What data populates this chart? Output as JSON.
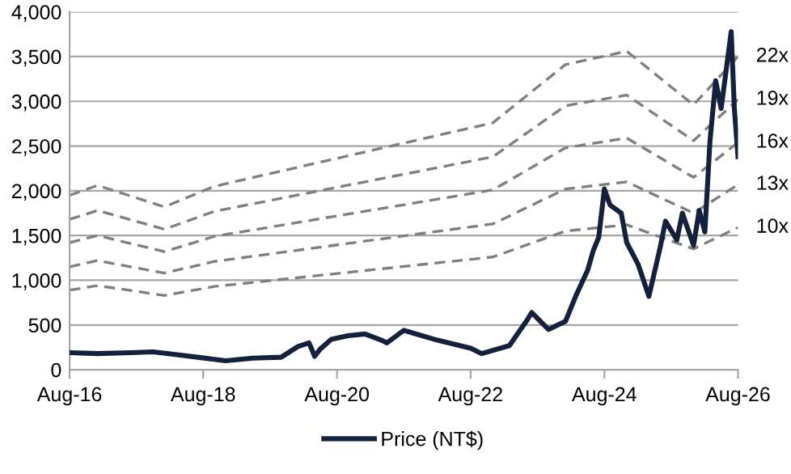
{
  "chart_data": {
    "type": "line",
    "legend": "bottom",
    "grid": "y",
    "xlim": [
      "2016-08",
      "2026-08"
    ],
    "xticks": [
      {
        "value": "2016-08",
        "label": "Aug-16"
      },
      {
        "value": "2018-08",
        "label": "Aug-18"
      },
      {
        "value": "2020-08",
        "label": "Aug-20"
      },
      {
        "value": "2022-08",
        "label": "Aug-22"
      },
      {
        "value": "2024-08",
        "label": "Aug-24"
      },
      {
        "value": "2026-08",
        "label": "Aug-26"
      }
    ],
    "ylim": [
      0,
      4000
    ],
    "yticks": [
      0,
      500,
      {
        "value": 1000,
        "label": "1,000"
      },
      {
        "value": 1500,
        "label": "1,500"
      },
      {
        "value": 2000,
        "label": "2,000"
      },
      {
        "value": 2500,
        "label": "2,500"
      },
      {
        "value": 3000,
        "label": "3,000"
      },
      {
        "value": 3500,
        "label": "3,500"
      },
      {
        "value": 4000,
        "label": "4,000"
      }
    ],
    "series": [
      {
        "name": "22x",
        "color": "#7f7f7f",
        "line_style": "dashed",
        "x": [
          "2016-08",
          "2017-01",
          "2018-01",
          "2018-10",
          "2022-12",
          "2024-01",
          "2024-12",
          "2025-12",
          "2026-08"
        ],
        "values": [
          1950,
          2060,
          1820,
          2050,
          2760,
          3410,
          3560,
          2960,
          3500
        ]
      },
      {
        "name": "19x",
        "color": "#7f7f7f",
        "line_style": "dashed",
        "x": [
          "2016-08",
          "2017-01",
          "2018-01",
          "2018-10",
          "2022-12",
          "2024-01",
          "2024-12",
          "2025-12",
          "2026-08"
        ],
        "values": [
          1680,
          1780,
          1570,
          1770,
          2380,
          2950,
          3070,
          2560,
          3020
        ]
      },
      {
        "name": "16x",
        "color": "#7f7f7f",
        "line_style": "dashed",
        "x": [
          "2016-08",
          "2017-01",
          "2018-01",
          "2018-10",
          "2022-12",
          "2024-01",
          "2024-12",
          "2025-12",
          "2026-08"
        ],
        "values": [
          1420,
          1500,
          1320,
          1490,
          2010,
          2480,
          2590,
          2150,
          2540
        ]
      },
      {
        "name": "13x",
        "color": "#7f7f7f",
        "line_style": "dashed",
        "x": [
          "2016-08",
          "2017-01",
          "2018-01",
          "2018-10",
          "2022-12",
          "2024-01",
          "2024-12",
          "2025-12",
          "2026-08"
        ],
        "values": [
          1150,
          1220,
          1080,
          1210,
          1630,
          2020,
          2100,
          1750,
          2070
        ]
      },
      {
        "name": "10x",
        "color": "#7f7f7f",
        "line_style": "dashed",
        "x": [
          "2016-08",
          "2017-01",
          "2018-01",
          "2018-10",
          "2022-12",
          "2024-01",
          "2024-12",
          "2025-12",
          "2026-08"
        ],
        "values": [
          890,
          940,
          830,
          930,
          1260,
          1550,
          1620,
          1350,
          1590
        ]
      },
      {
        "name": "Price (NT$)",
        "color": "#14213d",
        "line_style": "solid",
        "x": [
          "2016-08",
          "2017-01",
          "2017-07",
          "2017-11",
          "2018-03",
          "2018-07",
          "2018-12",
          "2019-05",
          "2019-10",
          "2020-01",
          "2020-03",
          "2020-04",
          "2020-05",
          "2020-07",
          "2020-10",
          "2021-01",
          "2021-04",
          "2021-05",
          "2021-08",
          "2022-02",
          "2022-08",
          "2022-10",
          "2023-03",
          "2023-06",
          "2023-07",
          "2023-09",
          "2023-10",
          "2024-01",
          "2024-03",
          "2024-05",
          "2024-06",
          "2024-07",
          "2024-08",
          "2024-09",
          "2024-11",
          "2024-12",
          "2025-02",
          "2025-04",
          "2025-06",
          "2025-07",
          "2025-09",
          "2025-10",
          "2025-12",
          "2026-01",
          "2026-02",
          "2026-03",
          "2026-04",
          "2026-05",
          "2026-06-05",
          "2026-06-25",
          "2026-07-12",
          "2026-08"
        ],
        "values": [
          190,
          180,
          190,
          200,
          170,
          140,
          100,
          130,
          140,
          260,
          300,
          150,
          230,
          340,
          380,
          400,
          330,
          300,
          440,
          330,
          240,
          180,
          270,
          540,
          640,
          510,
          450,
          540,
          840,
          1110,
          1330,
          1480,
          2020,
          1840,
          1750,
          1420,
          1180,
          820,
          1360,
          1660,
          1450,
          1750,
          1390,
          1780,
          1540,
          2560,
          3230,
          2920,
          3470,
          3780,
          2920,
          2380
        ]
      }
    ]
  }
}
